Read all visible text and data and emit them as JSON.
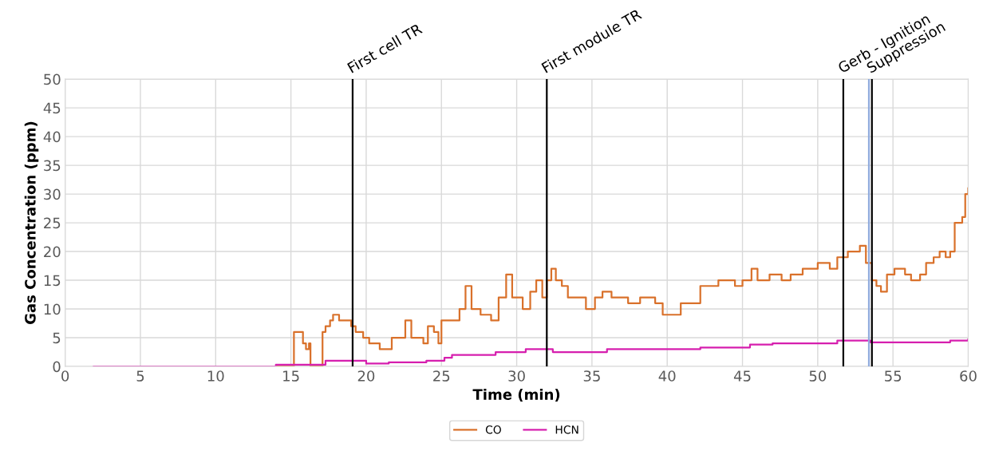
{
  "chart_data": {
    "type": "step",
    "xlabel": "Time (min)",
    "ylabel": "Gas Concentration (ppm)",
    "xlim": [
      0,
      60
    ],
    "xticks": [
      0,
      5,
      10,
      15,
      20,
      25,
      30,
      35,
      40,
      45,
      50,
      55,
      60
    ],
    "ylim": [
      0,
      50
    ],
    "yticks": [
      0,
      5,
      10,
      15,
      20,
      25,
      30,
      35,
      40,
      45,
      50
    ],
    "grid": true,
    "legend": "bottom",
    "line_style": "solid",
    "marker": "none",
    "series": [
      {
        "name": "CO",
        "color": "#d9712b",
        "x": [
          2,
          15.2,
          15.2,
          15.6,
          15.8,
          16.0,
          16.2,
          16.3,
          17.0,
          17.1,
          17.3,
          17.6,
          17.8,
          18.2,
          19.0,
          19.3,
          19.8,
          20.2,
          20.6,
          20.9,
          21.4,
          21.7,
          22.2,
          22.6,
          23.0,
          23.5,
          23.8,
          24.1,
          24.5,
          24.8,
          25.0,
          26.0,
          26.2,
          26.6,
          27.0,
          27.6,
          28.3,
          28.6,
          28.8,
          29.3,
          29.7,
          30.4,
          30.9,
          31.3,
          31.7,
          32.0,
          32.3,
          32.6,
          33.0,
          33.4,
          34.0,
          34.6,
          35.2,
          35.7,
          36.3,
          37.4,
          38.2,
          39.2,
          39.7,
          40.6,
          40.9,
          41.5,
          42.2,
          43.4,
          44.5,
          45.0,
          45.6,
          46.0,
          46.8,
          47.6,
          48.2,
          49.0,
          50.0,
          50.8,
          51.3,
          52.0,
          52.8,
          53.2,
          53.6,
          53.9,
          54.2,
          54.6,
          55.1,
          55.8,
          56.2,
          56.8,
          57.2,
          57.7,
          58.1,
          58.5,
          58.8,
          59.1,
          59.6,
          59.8,
          60.0
        ],
        "values": [
          0,
          0,
          6,
          6,
          4,
          3,
          4,
          0,
          0,
          6,
          7,
          8,
          9,
          8,
          7,
          6,
          5,
          4,
          4,
          3,
          3,
          5,
          5,
          8,
          5,
          5,
          4,
          7,
          6,
          4,
          8,
          8,
          10,
          14,
          10,
          9,
          8,
          8,
          12,
          16,
          12,
          10,
          13,
          15,
          12,
          15,
          17,
          15,
          14,
          12,
          12,
          10,
          12,
          13,
          12,
          11,
          12,
          11,
          9,
          9,
          11,
          11,
          14,
          15,
          14,
          15,
          17,
          15,
          16,
          15,
          16,
          17,
          18,
          17,
          19,
          20,
          21,
          18,
          15,
          14,
          13,
          16,
          17,
          16,
          15,
          16,
          18,
          19,
          20,
          19,
          20,
          25,
          26,
          30,
          31
        ]
      },
      {
        "name": "HCN",
        "color": "#d61fae",
        "x": [
          1.9,
          12,
          14,
          17.3,
          17.3,
          19.2,
          20,
          21.5,
          24,
          25.2,
          25.7,
          27.9,
          28.6,
          30.3,
          30.6,
          32.0,
          32.4,
          36,
          42.2,
          45.5,
          47,
          51.3,
          53.5,
          58.2,
          58.8,
          60
        ],
        "values": [
          0,
          0,
          0.3,
          0.5,
          1,
          1,
          0.5,
          0.7,
          1,
          1.5,
          2,
          2,
          2.5,
          2.5,
          3,
          3,
          2.5,
          3,
          3.3,
          3.8,
          4,
          4.5,
          4.2,
          4.2,
          4.5,
          4.7
        ]
      }
    ],
    "ref_lines": [
      {
        "axis": "x",
        "value": 19.1,
        "label": "First cell TR",
        "color": "#000000"
      },
      {
        "axis": "x",
        "value": 32.0,
        "label": "First module TR",
        "color": "#000000"
      },
      {
        "axis": "x",
        "value": 51.7,
        "label": "Gerb - Ignition",
        "color": "#000000"
      },
      {
        "axis": "x",
        "value": 53.4,
        "color": "#8faadc"
      },
      {
        "axis": "x",
        "value": 53.6,
        "label": "Suppression",
        "color": "#000000"
      }
    ]
  }
}
